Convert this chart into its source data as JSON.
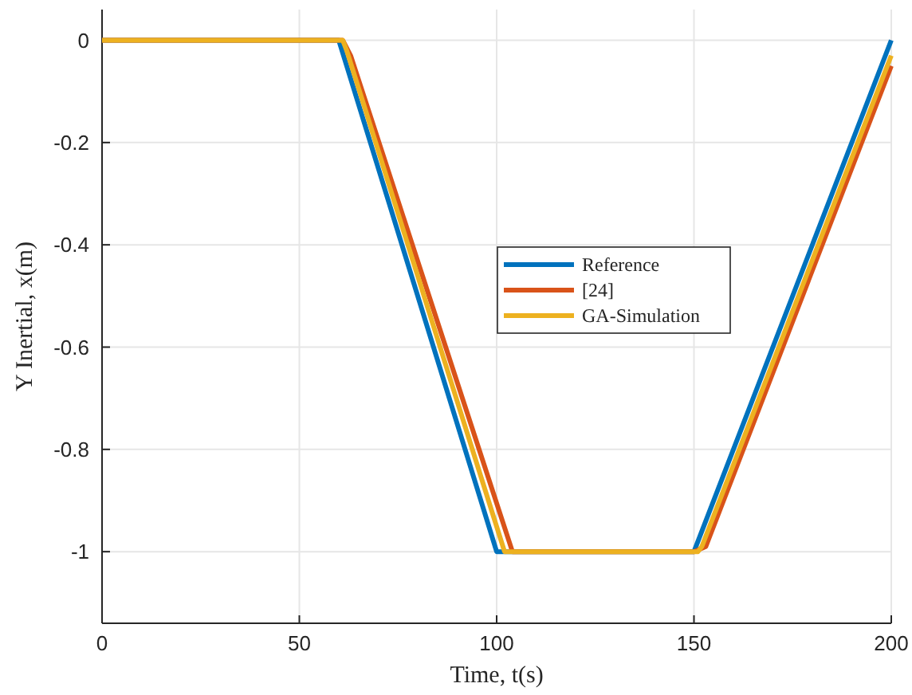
{
  "chart_data": {
    "type": "line",
    "xlabel": "Time, t(s)",
    "ylabel": "Y Inertial, x(m)",
    "xlim": [
      0,
      200
    ],
    "ylim": [
      -1.14,
      0.06
    ],
    "xticks": [
      0,
      50,
      100,
      150,
      200
    ],
    "yticks": [
      -1,
      -0.8,
      -0.6,
      -0.4,
      -0.2,
      0
    ],
    "grid": true,
    "legend": "right",
    "line_style": "solid",
    "marker": "none",
    "series": [
      {
        "name": "Reference",
        "color": "#0072bd",
        "x": [
          0,
          60,
          100,
          150,
          200
        ],
        "values": [
          0,
          0,
          -1,
          -1,
          0
        ]
      },
      {
        "name": "[24]",
        "color": "#d95319",
        "x": [
          0,
          61,
          63,
          104,
          150,
          153,
          200
        ],
        "values": [
          0,
          0,
          -0.03,
          -1,
          -1,
          -0.99,
          -0.05
        ]
      },
      {
        "name": "GA-Simulation",
        "color": "#edb120",
        "x": [
          0,
          61,
          62,
          102,
          151,
          152,
          200
        ],
        "values": [
          0,
          0,
          -0.02,
          -1,
          -1,
          -0.99,
          -0.03
        ]
      }
    ]
  }
}
